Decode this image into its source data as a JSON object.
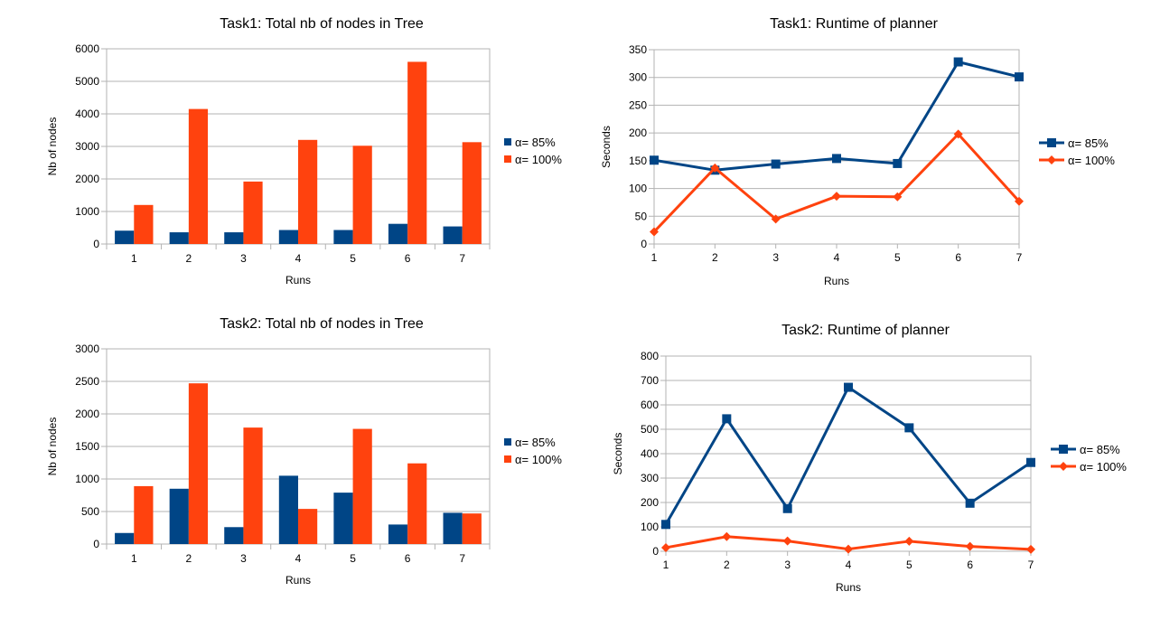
{
  "chart_data": [
    {
      "type": "bar",
      "title": "Task1: Total nb of nodes in Tree",
      "xlabel": "Runs",
      "ylabel": "Nb of nodes",
      "categories": [
        "1",
        "2",
        "3",
        "4",
        "5",
        "6",
        "7"
      ],
      "ylim": [
        0,
        6000
      ],
      "yticks": [
        0,
        1000,
        2000,
        3000,
        4000,
        5000,
        6000
      ],
      "grid": true,
      "legend_position": "right",
      "series": [
        {
          "name": "α= 85%",
          "color": "#004586",
          "values": [
            410,
            360,
            360,
            430,
            430,
            620,
            540
          ]
        },
        {
          "name": "α= 100%",
          "color": "#ff420e",
          "values": [
            1200,
            4150,
            1920,
            3200,
            3020,
            5600,
            3130
          ]
        }
      ]
    },
    {
      "type": "line",
      "title": "Task1: Runtime of planner",
      "xlabel": "Runs",
      "ylabel": "Seconds",
      "categories": [
        "1",
        "2",
        "3",
        "4",
        "5",
        "6",
        "7"
      ],
      "ylim": [
        0,
        350
      ],
      "yticks": [
        0,
        50,
        100,
        150,
        200,
        250,
        300,
        350
      ],
      "grid": true,
      "legend_position": "right",
      "series": [
        {
          "name": "α= 85%",
          "color": "#004586",
          "marker": "square",
          "values": [
            151,
            133,
            144,
            154,
            145,
            328,
            301
          ]
        },
        {
          "name": "α= 100%",
          "color": "#ff420e",
          "marker": "diamond",
          "values": [
            22,
            137,
            45,
            86,
            85,
            198,
            77
          ]
        }
      ]
    },
    {
      "type": "bar",
      "title": "Task2: Total nb of nodes in Tree",
      "xlabel": "Runs",
      "ylabel": "Nb of nodes",
      "categories": [
        "1",
        "2",
        "3",
        "4",
        "5",
        "6",
        "7"
      ],
      "ylim": [
        0,
        3000
      ],
      "yticks": [
        0,
        500,
        1000,
        1500,
        2000,
        2500,
        3000
      ],
      "grid": true,
      "legend_position": "right",
      "series": [
        {
          "name": "α= 85%",
          "color": "#004586",
          "values": [
            170,
            850,
            260,
            1050,
            790,
            300,
            480
          ]
        },
        {
          "name": "α= 100%",
          "color": "#ff420e",
          "values": [
            890,
            2470,
            1790,
            540,
            1770,
            1240,
            470
          ]
        }
      ]
    },
    {
      "type": "line",
      "title": "Task2: Runtime of planner",
      "xlabel": "Runs",
      "ylabel": "Seconds",
      "categories": [
        "1",
        "2",
        "3",
        "4",
        "5",
        "6",
        "7"
      ],
      "ylim": [
        0,
        800
      ],
      "yticks": [
        0,
        100,
        200,
        300,
        400,
        500,
        600,
        700,
        800
      ],
      "grid": true,
      "legend_position": "right",
      "series": [
        {
          "name": "α= 85%",
          "color": "#004586",
          "marker": "square",
          "values": [
            110,
            543,
            175,
            672,
            506,
            197,
            364
          ]
        },
        {
          "name": "α= 100%",
          "color": "#ff420e",
          "marker": "diamond",
          "values": [
            15,
            60,
            42,
            9,
            41,
            20,
            8
          ]
        }
      ]
    }
  ]
}
